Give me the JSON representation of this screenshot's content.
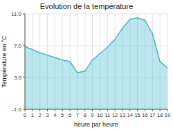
{
  "chart_data": {
    "type": "area",
    "title": "Evolution de la température",
    "xlabel": "heure par heure",
    "ylabel": "Température en °C",
    "x": [
      0,
      1,
      2,
      3,
      4,
      5,
      6,
      7,
      8,
      9,
      10,
      11,
      12,
      13,
      14,
      15,
      16,
      17,
      18,
      19
    ],
    "values": [
      6.9,
      6.5,
      6.1,
      5.8,
      5.5,
      5.2,
      5.0,
      3.6,
      3.8,
      5.2,
      6.0,
      6.8,
      7.8,
      9.2,
      10.3,
      10.5,
      10.2,
      8.5,
      5.0,
      4.2
    ],
    "xlim": [
      0,
      19
    ],
    "ylim": [
      -1.0,
      11.0
    ],
    "xticks": [
      0,
      1,
      2,
      3,
      4,
      5,
      6,
      7,
      8,
      9,
      10,
      11,
      12,
      13,
      14,
      15,
      16,
      17,
      18,
      19
    ],
    "yticks": [
      {
        "value": -1.0,
        "label": "-1.0"
      },
      {
        "value": 3.0,
        "label": "3.0"
      },
      {
        "value": 7.0,
        "label": "7.0"
      },
      {
        "value": 11.0,
        "label": "11.0"
      }
    ],
    "color": "#40b8cc",
    "grid": true
  }
}
